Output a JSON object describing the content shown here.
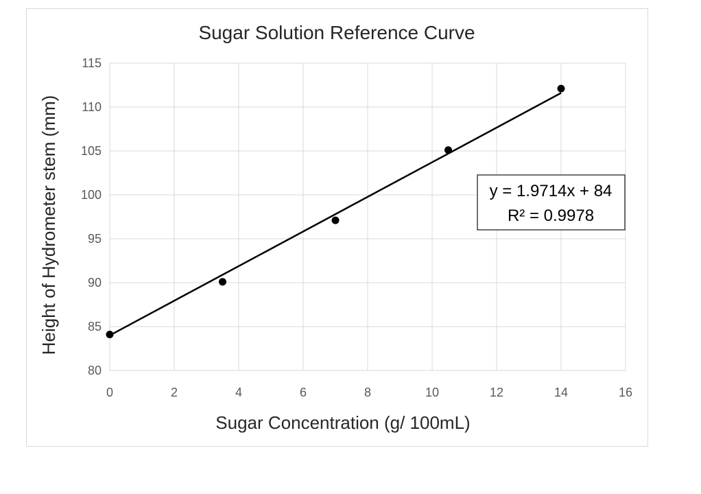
{
  "chart_data": {
    "type": "scatter",
    "title": "Sugar Solution Reference Curve",
    "xlabel": "Sugar Concentration (g/ 100mL)",
    "ylabel": "Height of Hydrometer stem (mm)",
    "xlim": [
      0,
      16
    ],
    "ylim": [
      80,
      115
    ],
    "x_ticks": [
      0,
      2,
      4,
      6,
      8,
      10,
      12,
      14,
      16
    ],
    "y_ticks": [
      80,
      85,
      90,
      95,
      100,
      105,
      110,
      115
    ],
    "grid": true,
    "legend": "none",
    "series": [
      {
        "x": [
          0,
          3.5,
          7,
          10.5,
          14
        ],
        "y": [
          84.1,
          90.1,
          97.1,
          105.1,
          112.1
        ],
        "marker_color": "#000000"
      }
    ],
    "trendline": {
      "slope": 1.9714,
      "intercept": 84,
      "x_range": [
        0,
        14
      ],
      "equation_label": "y = 1.9714x + 84",
      "r2_label": "R² = 0.9978",
      "color": "#000000"
    },
    "colors": {
      "grid": "#d9d9d9",
      "axis_text": "#595959",
      "title_text": "#262626"
    }
  }
}
